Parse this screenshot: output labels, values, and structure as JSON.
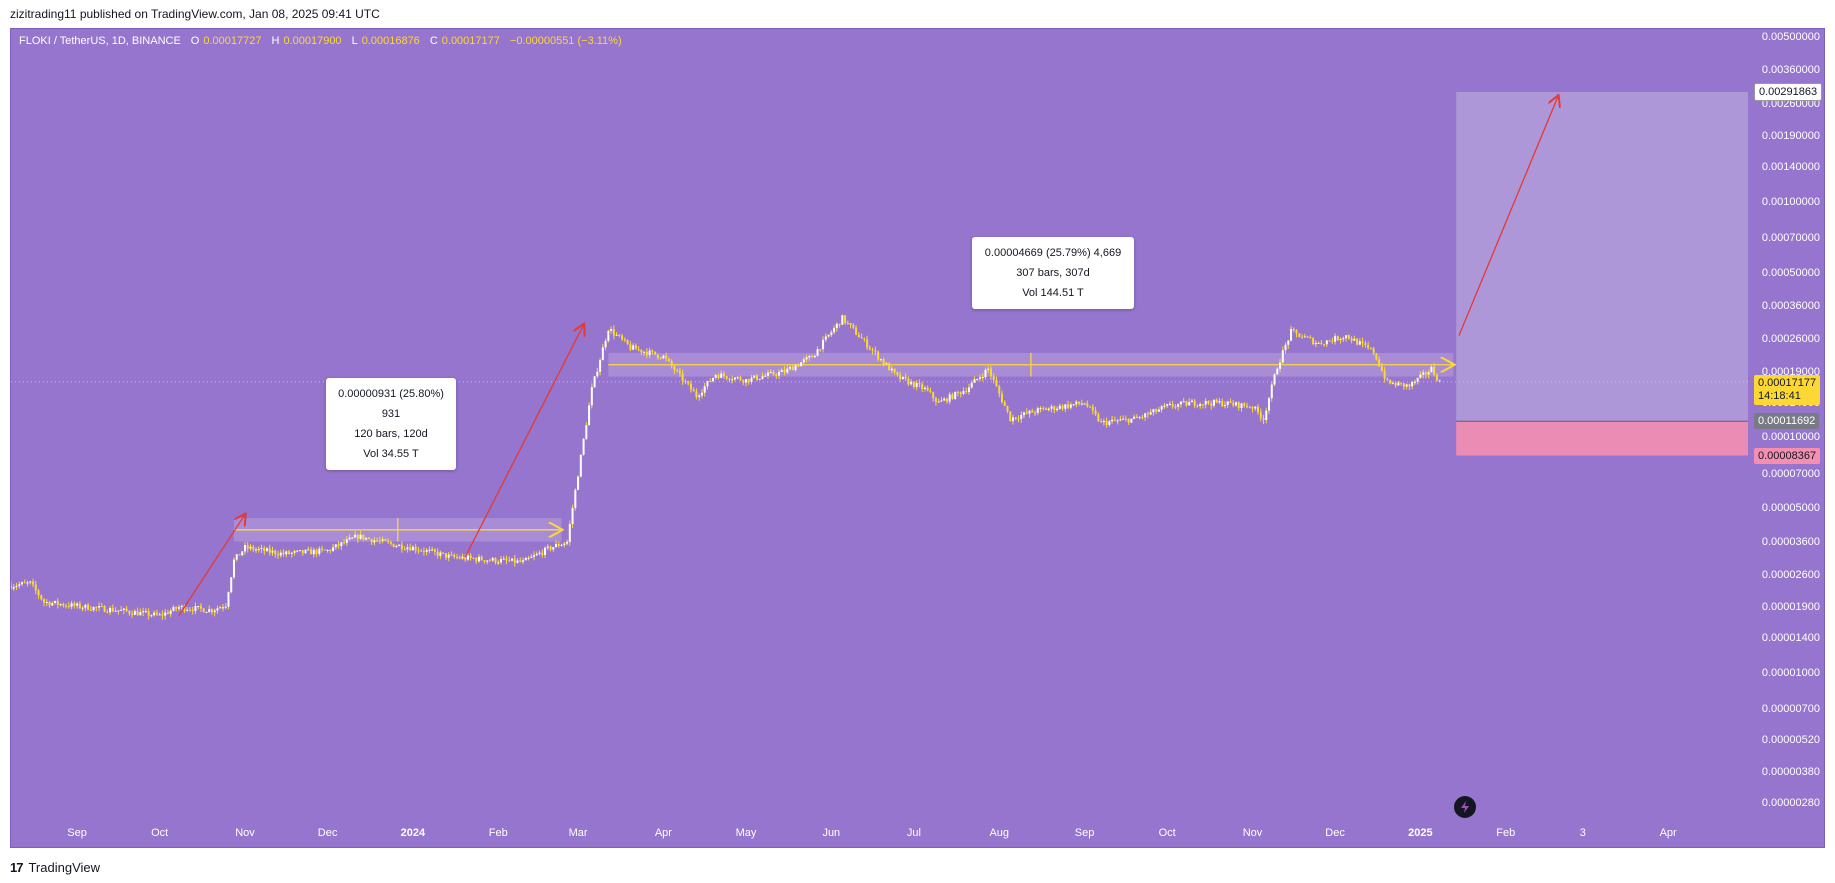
{
  "header": {
    "publish_info": "zizitrading11 published on TradingView.com, Jan 08, 2025 09:41 UTC"
  },
  "legend": {
    "symbol": "FLOKI / TetherUS, 1D, BINANCE",
    "o_key": "O",
    "o_val": "0.00017727",
    "h_key": "H",
    "h_val": "0.00017900",
    "l_key": "L",
    "l_val": "0.00016876",
    "c_key": "C",
    "c_val": "0.00017177",
    "change": "−0.00000551 (−3.11%)"
  },
  "measure_1": {
    "line1": "0.00000931 (25.80%) 931",
    "line2": "120 bars, 120d",
    "line3": "Vol 34.55 T"
  },
  "measure_2": {
    "line1": "0.00004669 (25.79%) 4,669",
    "line2": "307 bars, 307d",
    "line3": "Vol 144.51 T"
  },
  "price_tags": {
    "target": "0.00291863",
    "current": "0.00017177",
    "countdown": "14:18:41",
    "entry": "0.00011692",
    "stop": "0.00008367"
  },
  "footer": {
    "brand": "TradingView",
    "logo_mark": "17"
  },
  "colors": {
    "background": "#9575cd",
    "candle": "#fdd835",
    "arrow": "#e53935",
    "target_zone": "#b39ddb",
    "stop_zone": "#f48fb1"
  },
  "icons": [
    "bolt-icon",
    "tradingview-logo-icon"
  ],
  "chart_data": {
    "type": "candlestick",
    "title": "FLOKI / TetherUS, 1D, BINANCE",
    "y_scale": "log",
    "ylim": [
      2.4e-06,
      0.0054
    ],
    "y_ticks": [
      "0.00500000",
      "0.00360000",
      "0.00260000",
      "0.00190000",
      "0.00140000",
      "0.00100000",
      "0.00070000",
      "0.00050000",
      "0.00036000",
      "0.00026000",
      "0.00019000",
      "0.00014000",
      "0.00010000",
      "0.00007000",
      "0.00005000",
      "0.00003600",
      "0.00002600",
      "0.00001900",
      "0.00001400",
      "0.00001000",
      "0.00000700",
      "0.00000520",
      "0.00000380",
      "0.00000280"
    ],
    "y_tick_values": [
      0.005,
      0.0036,
      0.0026,
      0.0019,
      0.0014,
      0.001,
      0.0007,
      0.0005,
      0.00036,
      0.00026,
      0.00019,
      0.00014,
      0.0001,
      7e-05,
      5e-05,
      3.6e-05,
      2.6e-05,
      1.9e-05,
      1.4e-05,
      1e-05,
      7e-06,
      5.2e-06,
      3.8e-06,
      2.8e-06
    ],
    "x_ticks": [
      "Sep",
      "Oct",
      "Nov",
      "Dec",
      "2024",
      "Feb",
      "Mar",
      "Apr",
      "May",
      "Jun",
      "Jul",
      "Aug",
      "Sep",
      "Oct",
      "Nov",
      "Dec",
      "2025",
      "Feb",
      "3",
      "Apr"
    ],
    "x_tick_dates": [
      "2023-09-01",
      "2023-10-01",
      "2023-11-01",
      "2023-12-01",
      "2024-01-01",
      "2024-02-01",
      "2024-03-01",
      "2024-04-01",
      "2024-05-01",
      "2024-06-01",
      "2024-07-01",
      "2024-08-01",
      "2024-09-01",
      "2024-10-01",
      "2024-11-01",
      "2024-12-01",
      "2025-01-01",
      "2025-02-01",
      "2025-03-01",
      "2025-04-01"
    ],
    "x_range": [
      "2023-08-08",
      "2025-04-30"
    ],
    "price_path": [
      [
        "2023-08-08",
        2.35e-05
      ],
      [
        "2023-08-15",
        2.4e-05
      ],
      [
        "2023-08-20",
        2e-05
      ],
      [
        "2023-09-01",
        1.92e-05
      ],
      [
        "2023-09-15",
        1.85e-05
      ],
      [
        "2023-10-01",
        1.75e-05
      ],
      [
        "2023-10-08",
        1.9e-05
      ],
      [
        "2023-10-20",
        1.85e-05
      ],
      [
        "2023-10-25",
        1.95e-05
      ],
      [
        "2023-10-28",
        3e-05
      ],
      [
        "2023-11-01",
        3.4e-05
      ],
      [
        "2023-11-15",
        3.2e-05
      ],
      [
        "2023-12-01",
        3.3e-05
      ],
      [
        "2023-12-12",
        3.8e-05
      ],
      [
        "2023-12-25",
        3.5e-05
      ],
      [
        "2024-01-01",
        3.4e-05
      ],
      [
        "2024-01-15",
        3.1e-05
      ],
      [
        "2024-02-01",
        3e-05
      ],
      [
        "2024-02-10",
        2.95e-05
      ],
      [
        "2024-02-20",
        3.4e-05
      ],
      [
        "2024-02-26",
        3.6e-05
      ],
      [
        "2024-03-01",
        7e-05
      ],
      [
        "2024-03-06",
        0.00016
      ],
      [
        "2024-03-12",
        0.00029
      ],
      [
        "2024-03-20",
        0.00024
      ],
      [
        "2024-04-01",
        0.00022
      ],
      [
        "2024-04-13",
        0.00015
      ],
      [
        "2024-04-20",
        0.000185
      ],
      [
        "2024-05-01",
        0.000175
      ],
      [
        "2024-05-15",
        0.00019
      ],
      [
        "2024-05-25",
        0.00022
      ],
      [
        "2024-06-05",
        0.00032
      ],
      [
        "2024-06-15",
        0.00024
      ],
      [
        "2024-06-25",
        0.00018
      ],
      [
        "2024-07-05",
        0.00016
      ],
      [
        "2024-07-10",
        0.00014
      ],
      [
        "2024-07-20",
        0.00016
      ],
      [
        "2024-07-28",
        0.000195
      ],
      [
        "2024-08-05",
        0.00012
      ],
      [
        "2024-08-15",
        0.00013
      ],
      [
        "2024-09-01",
        0.00014
      ],
      [
        "2024-09-07",
        0.000115
      ],
      [
        "2024-09-20",
        0.00012
      ],
      [
        "2024-10-01",
        0.000135
      ],
      [
        "2024-10-10",
        0.00014
      ],
      [
        "2024-10-20",
        0.00014
      ],
      [
        "2024-11-01",
        0.000135
      ],
      [
        "2024-11-05",
        0.00012
      ],
      [
        "2024-11-10",
        0.0002
      ],
      [
        "2024-11-15",
        0.00028
      ],
      [
        "2024-11-25",
        0.00025
      ],
      [
        "2024-12-05",
        0.00027
      ],
      [
        "2024-12-15",
        0.00023
      ],
      [
        "2024-12-20",
        0.00017
      ],
      [
        "2024-12-28",
        0.000165
      ],
      [
        "2025-01-05",
        0.000195
      ],
      [
        "2025-01-08",
        0.00017177
      ]
    ],
    "last_close": 0.00017177,
    "range_box_1": {
      "from": "2023-10-28",
      "to": "2024-02-24",
      "low": 3.61e-05,
      "high": 4.54e-05
    },
    "range_box_2": {
      "from": "2024-03-12",
      "to": "2025-01-13",
      "low": 0.000181,
      "high": 0.000228
    },
    "long_position": {
      "from": "2025-01-14",
      "entry": 0.00011692,
      "target": 0.00291863,
      "stop": 8.367e-05
    },
    "arrows": [
      {
        "from": [
          "2023-10-08",
          1.75e-05
        ],
        "to": [
          "2023-11-01",
          4.7e-05
        ]
      },
      {
        "from": [
          "2024-01-20",
          3.1e-05
        ],
        "to": [
          "2024-03-03",
          0.0003
        ]
      },
      {
        "from": [
          "2025-01-15",
          0.00027
        ],
        "to": [
          "2025-02-20",
          0.0028
        ]
      }
    ]
  }
}
